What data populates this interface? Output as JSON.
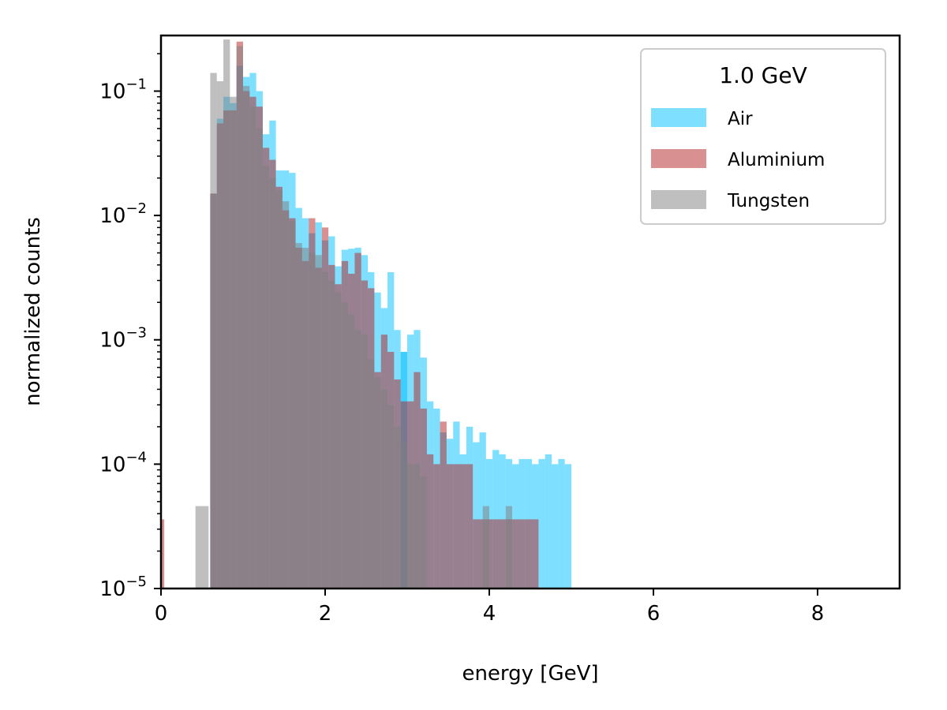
{
  "chart_data": {
    "type": "histogram",
    "xlabel": "energy [GeV]",
    "ylabel": "normalized counts",
    "xlim": [
      0,
      9
    ],
    "ylim": [
      1e-05,
      0.28
    ],
    "yscale": "log",
    "x_ticks": [
      0,
      2,
      4,
      6,
      8
    ],
    "y_ticks": [
      {
        "value": 1e-05,
        "base": "10",
        "exp": "−5"
      },
      {
        "value": 0.0001,
        "base": "10",
        "exp": "−4"
      },
      {
        "value": 0.001,
        "base": "10",
        "exp": "−3"
      },
      {
        "value": 0.01,
        "base": "10",
        "exp": "−2"
      },
      {
        "value": 0.1,
        "base": "10",
        "exp": "−1"
      }
    ],
    "grid": false,
    "legend": {
      "title": "1.0 GeV",
      "placement": "top-right"
    },
    "series": [
      {
        "name": "Air",
        "color": "#00bfff",
        "opacity": 0.5,
        "bins": [
          [
            0.6,
            0.68,
            0.015
          ],
          [
            0.68,
            0.76,
            0.06
          ],
          [
            0.76,
            0.84,
            0.09
          ],
          [
            0.84,
            0.92,
            0.08
          ],
          [
            0.92,
            1.0,
            0.16
          ],
          [
            1.0,
            1.08,
            0.13
          ],
          [
            1.08,
            1.16,
            0.14
          ],
          [
            1.16,
            1.24,
            0.1
          ],
          [
            1.24,
            1.32,
            0.045
          ],
          [
            1.32,
            1.4,
            0.058
          ],
          [
            1.4,
            1.48,
            0.023
          ],
          [
            1.48,
            1.56,
            0.023
          ],
          [
            1.56,
            1.64,
            0.022
          ],
          [
            1.64,
            1.72,
            0.0115
          ],
          [
            1.72,
            1.8,
            0.0095
          ],
          [
            1.8,
            1.88,
            0.0072
          ],
          [
            1.88,
            1.96,
            0.0088
          ],
          [
            1.96,
            2.04,
            0.0063
          ],
          [
            2.04,
            2.12,
            0.0068
          ],
          [
            2.12,
            2.2,
            0.0039
          ],
          [
            2.2,
            2.28,
            0.0053
          ],
          [
            2.28,
            2.36,
            0.0054
          ],
          [
            2.36,
            2.44,
            0.0055
          ],
          [
            2.44,
            2.52,
            0.0048
          ],
          [
            2.52,
            2.6,
            0.0035
          ],
          [
            2.6,
            2.68,
            0.0024
          ],
          [
            2.68,
            2.76,
            0.0018
          ],
          [
            2.76,
            2.84,
            0.0035
          ],
          [
            2.84,
            2.92,
            0.0012
          ],
          [
            2.92,
            3.0,
            0.0008
          ],
          [
            3.0,
            3.08,
            0.0011
          ],
          [
            3.08,
            3.16,
            0.0012
          ],
          [
            3.16,
            3.24,
            0.00072
          ],
          [
            3.24,
            3.32,
            0.00032
          ],
          [
            3.32,
            3.4,
            0.00028
          ],
          [
            3.4,
            3.48,
            0.00018
          ],
          [
            3.48,
            3.56,
            0.00016
          ],
          [
            3.56,
            3.64,
            0.00022
          ],
          [
            3.64,
            3.72,
            0.00012
          ],
          [
            3.72,
            3.8,
            0.0002
          ],
          [
            3.8,
            3.88,
            0.00015
          ],
          [
            3.88,
            3.96,
            0.00018
          ],
          [
            3.96,
            4.04,
            0.00011
          ],
          [
            4.04,
            4.12,
            0.00013
          ],
          [
            4.12,
            4.2,
            0.00012
          ],
          [
            4.2,
            4.28,
            0.00011
          ],
          [
            4.28,
            4.36,
            0.0001
          ],
          [
            4.36,
            4.44,
            0.00011
          ],
          [
            4.44,
            4.52,
            0.00011
          ],
          [
            4.52,
            4.6,
            0.0001
          ],
          [
            4.6,
            4.68,
            0.00011
          ],
          [
            4.68,
            4.76,
            0.00012
          ],
          [
            4.76,
            4.84,
            0.0001
          ],
          [
            4.84,
            4.92,
            0.00011
          ],
          [
            4.92,
            5.0,
            0.0001
          ],
          [
            2.92,
            3.0,
            0.0008
          ]
        ]
      },
      {
        "name": "Aluminium",
        "color": "#b22222",
        "opacity": 0.5,
        "bins": [
          [
            0.0,
            0.04,
            3.6e-05
          ],
          [
            0.6,
            0.68,
            0.015
          ],
          [
            0.68,
            0.76,
            0.055
          ],
          [
            0.76,
            0.84,
            0.07
          ],
          [
            0.84,
            0.92,
            0.07
          ],
          [
            0.92,
            1.0,
            0.25
          ],
          [
            1.0,
            1.08,
            0.1
          ],
          [
            1.08,
            1.16,
            0.09
          ],
          [
            1.16,
            1.24,
            0.075
          ],
          [
            1.24,
            1.32,
            0.035
          ],
          [
            1.32,
            1.4,
            0.028
          ],
          [
            1.4,
            1.48,
            0.017
          ],
          [
            1.48,
            1.56,
            0.011
          ],
          [
            1.56,
            1.64,
            0.0095
          ],
          [
            1.64,
            1.72,
            0.0055
          ],
          [
            1.72,
            1.8,
            0.0043
          ],
          [
            1.8,
            1.88,
            0.0095
          ],
          [
            1.88,
            1.96,
            0.0038
          ],
          [
            1.96,
            2.04,
            0.008
          ],
          [
            2.04,
            2.12,
            0.004
          ],
          [
            2.12,
            2.2,
            0.0028
          ],
          [
            2.2,
            2.28,
            0.0043
          ],
          [
            2.28,
            2.36,
            0.0034
          ],
          [
            2.36,
            2.44,
            0.005
          ],
          [
            2.44,
            2.52,
            0.003
          ],
          [
            2.52,
            2.6,
            0.0026
          ],
          [
            2.6,
            2.68,
            0.00055
          ],
          [
            2.68,
            2.76,
            0.0011
          ],
          [
            2.76,
            2.84,
            0.0008
          ],
          [
            2.84,
            2.92,
            0.00048
          ],
          [
            2.92,
            3.0,
            0.00032
          ],
          [
            3.0,
            3.08,
            0.00032
          ],
          [
            3.08,
            3.16,
            0.00055
          ],
          [
            3.16,
            3.24,
            0.00028
          ],
          [
            3.24,
            3.32,
            0.00012
          ],
          [
            3.32,
            3.4,
            0.0001
          ],
          [
            3.4,
            3.48,
            0.00022
          ],
          [
            3.48,
            3.56,
            0.0001
          ],
          [
            3.56,
            3.64,
            0.0001
          ],
          [
            3.64,
            3.72,
            0.0001
          ],
          [
            3.72,
            3.8,
            0.0001
          ],
          [
            3.8,
            3.88,
            3.6e-05
          ],
          [
            3.88,
            3.96,
            3.6e-05
          ],
          [
            3.96,
            4.04,
            3.6e-05
          ],
          [
            4.04,
            4.12,
            3.6e-05
          ],
          [
            4.12,
            4.2,
            3.6e-05
          ],
          [
            4.2,
            4.28,
            3.6e-05
          ],
          [
            4.28,
            4.36,
            3.6e-05
          ],
          [
            4.36,
            4.44,
            3.6e-05
          ],
          [
            4.44,
            4.52,
            3.6e-05
          ],
          [
            4.52,
            4.6,
            3.6e-05
          ]
        ]
      },
      {
        "name": "Tungsten",
        "color": "#808080",
        "opacity": 0.5,
        "bins": [
          [
            0.42,
            0.5,
            4.6e-05
          ],
          [
            0.5,
            0.58,
            4.6e-05
          ],
          [
            0.6,
            0.68,
            0.14
          ],
          [
            0.68,
            0.76,
            0.12
          ],
          [
            0.76,
            0.84,
            0.26
          ],
          [
            0.84,
            0.92,
            0.09
          ],
          [
            0.92,
            1.0,
            0.23
          ],
          [
            1.0,
            1.08,
            0.11
          ],
          [
            1.08,
            1.16,
            0.075
          ],
          [
            1.16,
            1.24,
            0.05
          ],
          [
            1.24,
            1.32,
            0.025
          ],
          [
            1.32,
            1.4,
            0.02
          ],
          [
            1.4,
            1.48,
            0.016
          ],
          [
            1.48,
            1.56,
            0.013
          ],
          [
            1.56,
            1.64,
            0.009
          ],
          [
            1.64,
            1.72,
            0.006
          ],
          [
            1.72,
            1.8,
            0.0055
          ],
          [
            1.8,
            1.88,
            0.005
          ],
          [
            1.88,
            1.96,
            0.0048
          ],
          [
            1.96,
            2.04,
            0.0035
          ],
          [
            2.04,
            2.12,
            0.003
          ],
          [
            2.12,
            2.2,
            0.0024
          ],
          [
            2.2,
            2.28,
            0.002
          ],
          [
            2.28,
            2.36,
            0.0016
          ],
          [
            2.36,
            2.44,
            0.0012
          ],
          [
            2.44,
            2.52,
            0.0011
          ],
          [
            2.52,
            2.6,
            0.0007
          ],
          [
            2.6,
            2.68,
            0.0005
          ],
          [
            2.68,
            2.76,
            0.0004
          ],
          [
            2.76,
            2.84,
            0.0003
          ],
          [
            2.84,
            2.92,
            0.0002
          ],
          [
            2.92,
            3.0,
            0.00015
          ],
          [
            3.0,
            3.08,
            0.0001
          ],
          [
            3.08,
            3.16,
            0.0001
          ],
          [
            3.16,
            3.24,
            8e-05
          ],
          [
            3.92,
            4.0,
            4.6e-05
          ],
          [
            4.2,
            4.28,
            4.6e-05
          ]
        ]
      }
    ]
  }
}
